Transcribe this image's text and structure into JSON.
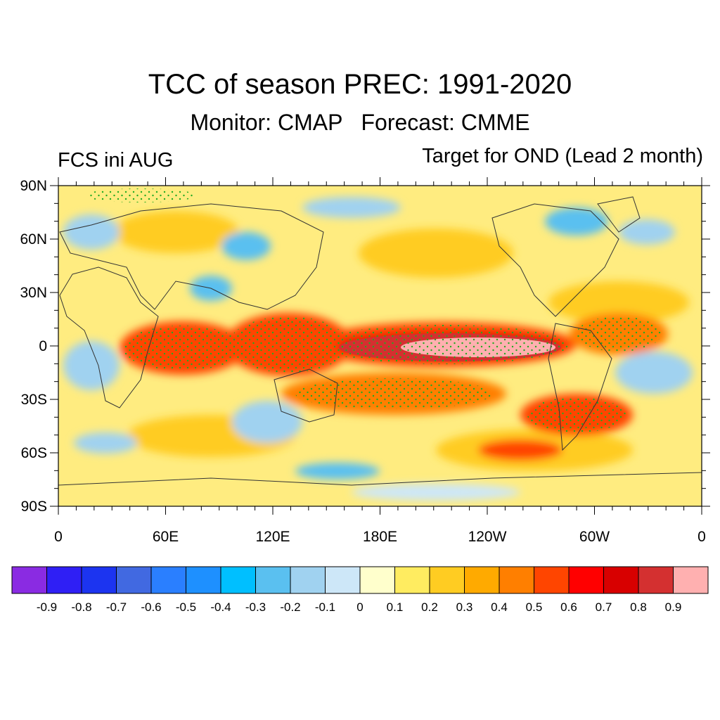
{
  "title": "TCC of season PREC: 1991-2020",
  "subtitle": "Monitor: CMAP   Forecast: CMME",
  "left_label": "FCS ini AUG",
  "right_label": "Target for OND (Lead 2 month)",
  "map": {
    "projection": "cylindrical equidistant",
    "lon_range": [
      0,
      360
    ],
    "lat_range": [
      -90,
      90
    ],
    "lat_ticks": [
      {
        "value": 90,
        "label": "90N"
      },
      {
        "value": 60,
        "label": "60N"
      },
      {
        "value": 30,
        "label": "30N"
      },
      {
        "value": 0,
        "label": "0"
      },
      {
        "value": -30,
        "label": "30S"
      },
      {
        "value": -60,
        "label": "60S"
      },
      {
        "value": -90,
        "label": "90S"
      }
    ],
    "lon_ticks": [
      {
        "value": 0,
        "label": "0"
      },
      {
        "value": 60,
        "label": "60E"
      },
      {
        "value": 120,
        "label": "120E"
      },
      {
        "value": 180,
        "label": "180E"
      },
      {
        "value": 240,
        "label": "120W"
      },
      {
        "value": 300,
        "label": "60W"
      },
      {
        "value": 360,
        "label": "0"
      }
    ],
    "stippling_color": "#22aa22",
    "coastline_color": "#333333"
  },
  "colorbar": {
    "colors": [
      "#8a2be2",
      "#2f1ff5",
      "#1c34f0",
      "#4169e1",
      "#2a7fff",
      "#1e90ff",
      "#00bfff",
      "#5ac0f0",
      "#a0d2f0",
      "#cde7f8",
      "#ffffcc",
      "#ffec60",
      "#ffcc22",
      "#ffaa00",
      "#ff7f00",
      "#ff4500",
      "#ff0000",
      "#d80000",
      "#d43030",
      "#ffb0b0"
    ],
    "labels": [
      "-0.9",
      "-0.8",
      "-0.7",
      "-0.6",
      "-0.5",
      "-0.4",
      "-0.3",
      "-0.2",
      "-0.1",
      "0",
      "0.1",
      "0.2",
      "0.3",
      "0.4",
      "0.5",
      "0.6",
      "0.7",
      "0.8",
      "0.9"
    ]
  }
}
